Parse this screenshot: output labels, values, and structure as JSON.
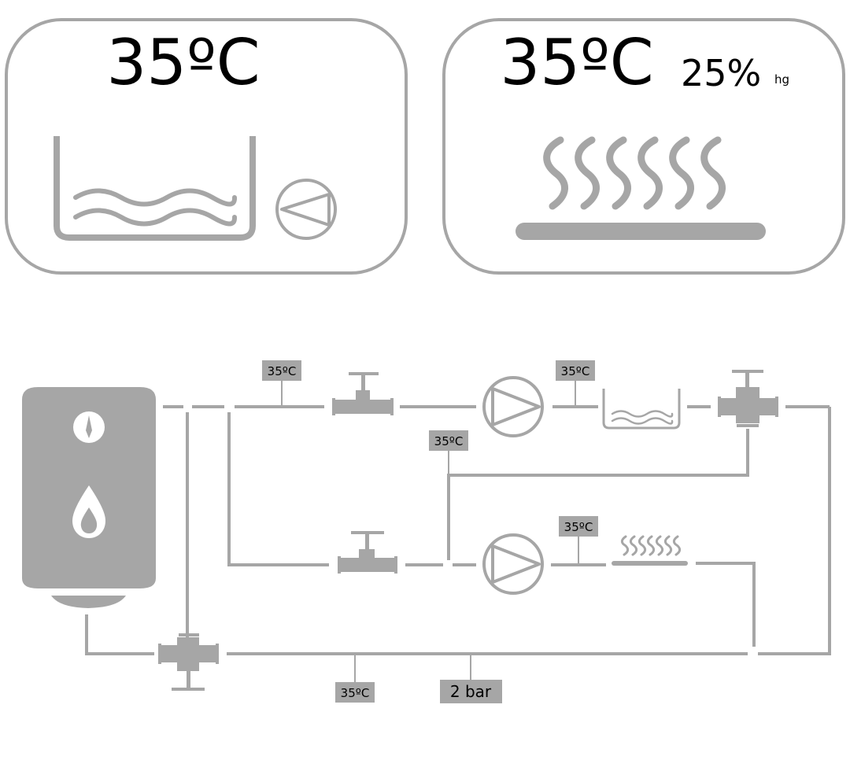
{
  "panels": {
    "pool": {
      "temperature": "35ºC"
    },
    "floor": {
      "temperature": "35ºC",
      "humidity": "25%",
      "humidity_unit": "hg"
    }
  },
  "sensors": {
    "top_supply": "35ºC",
    "pool_supply": "35ºC",
    "bypass_return": "35ºC",
    "floor_supply": "35ºC",
    "main_return_temp": "35ºC",
    "main_return_pressure": "2 bar"
  },
  "colors": {
    "stroke": "#a6a6a6",
    "fill": "#a6a6a6",
    "text": "#000000"
  }
}
